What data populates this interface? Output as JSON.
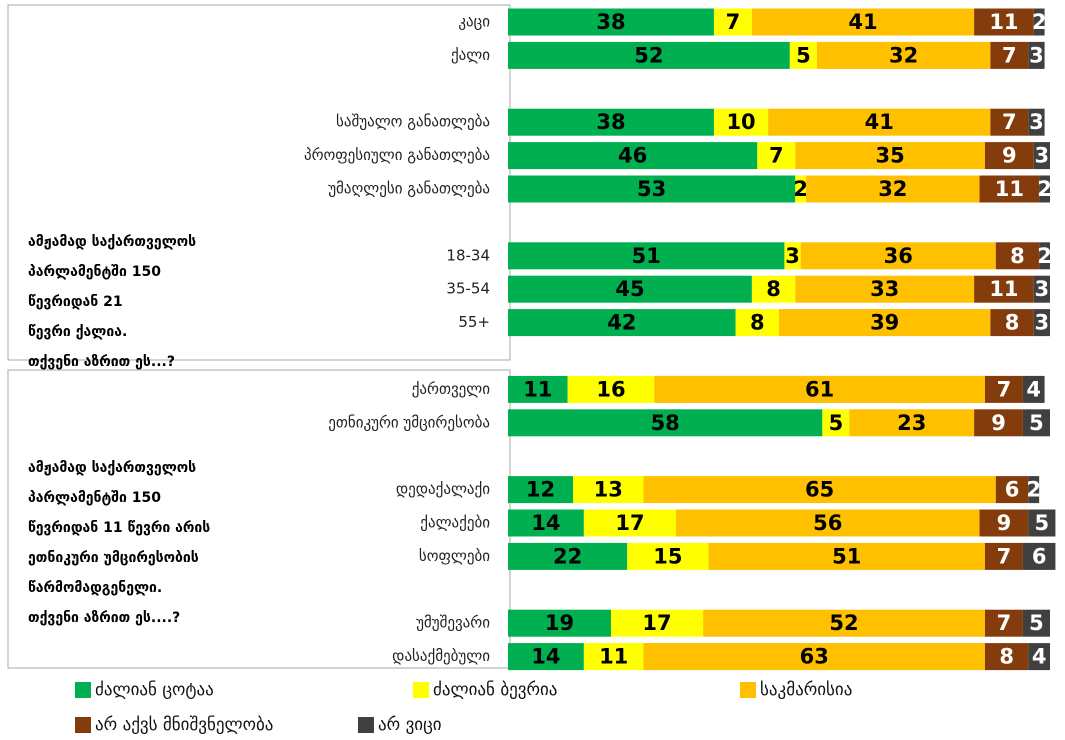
{
  "chart_data": {
    "type": "stacked-bar-horizontal",
    "categories": [
      "კაცი",
      "ქალი",
      null,
      "საშუალო განათლება",
      "პროფესიული განათლება",
      "უმაღლესი განათლება",
      null,
      "18-34",
      "35-54",
      "55+",
      null,
      "ქართველი",
      "ეთნიკური უმცირესობა",
      null,
      "დედაქალაქი",
      "ქალაქები",
      "სოფლები",
      null,
      "უმუშევარი",
      "დასაქმებული"
    ],
    "xlim": [
      0,
      100
    ],
    "series": [
      {
        "name": "ძალიან ცოტაა",
        "color": "#00b050",
        "values": [
          38,
          52,
          null,
          38,
          46,
          53,
          null,
          51,
          45,
          42,
          null,
          11,
          58,
          null,
          12,
          14,
          22,
          null,
          19,
          14
        ]
      },
      {
        "name": "ძალიან ბევრია",
        "color": "#ffff00",
        "values": [
          7,
          5,
          null,
          10,
          7,
          2,
          null,
          3,
          8,
          8,
          null,
          16,
          5,
          null,
          13,
          17,
          15,
          null,
          17,
          11
        ]
      },
      {
        "name": "საკმარისია",
        "color": "#ffc000",
        "values": [
          41,
          32,
          null,
          41,
          35,
          32,
          null,
          36,
          33,
          39,
          null,
          61,
          23,
          null,
          65,
          56,
          51,
          null,
          52,
          63
        ]
      },
      {
        "name": "არ აქვს მნიშვნელობა",
        "color": "#843c0c",
        "values": [
          11,
          7,
          null,
          7,
          9,
          11,
          null,
          8,
          11,
          8,
          null,
          7,
          9,
          null,
          6,
          9,
          7,
          null,
          7,
          8
        ]
      },
      {
        "name": "არ ვიცი",
        "color": "#404040",
        "values": [
          2,
          3,
          null,
          3,
          3,
          2,
          null,
          2,
          3,
          3,
          null,
          4,
          5,
          null,
          2,
          5,
          6,
          null,
          5,
          4
        ]
      }
    ],
    "annotations": [
      [
        "ამჟამად საქართველოს",
        "პარლამენტში 150",
        "წევრიდან  21",
        "წევრი  ქალია.",
        "თქვენი აზრით ეს...?"
      ],
      [
        "ამჟამად საქართველოს",
        "პარლამენტში 150",
        "წევრიდან 11 წევრი არის",
        "ეთნიკური უმცირესობის",
        "წარმომადგენელი.",
        "თქვენი აზრით ეს....?"
      ]
    ]
  }
}
